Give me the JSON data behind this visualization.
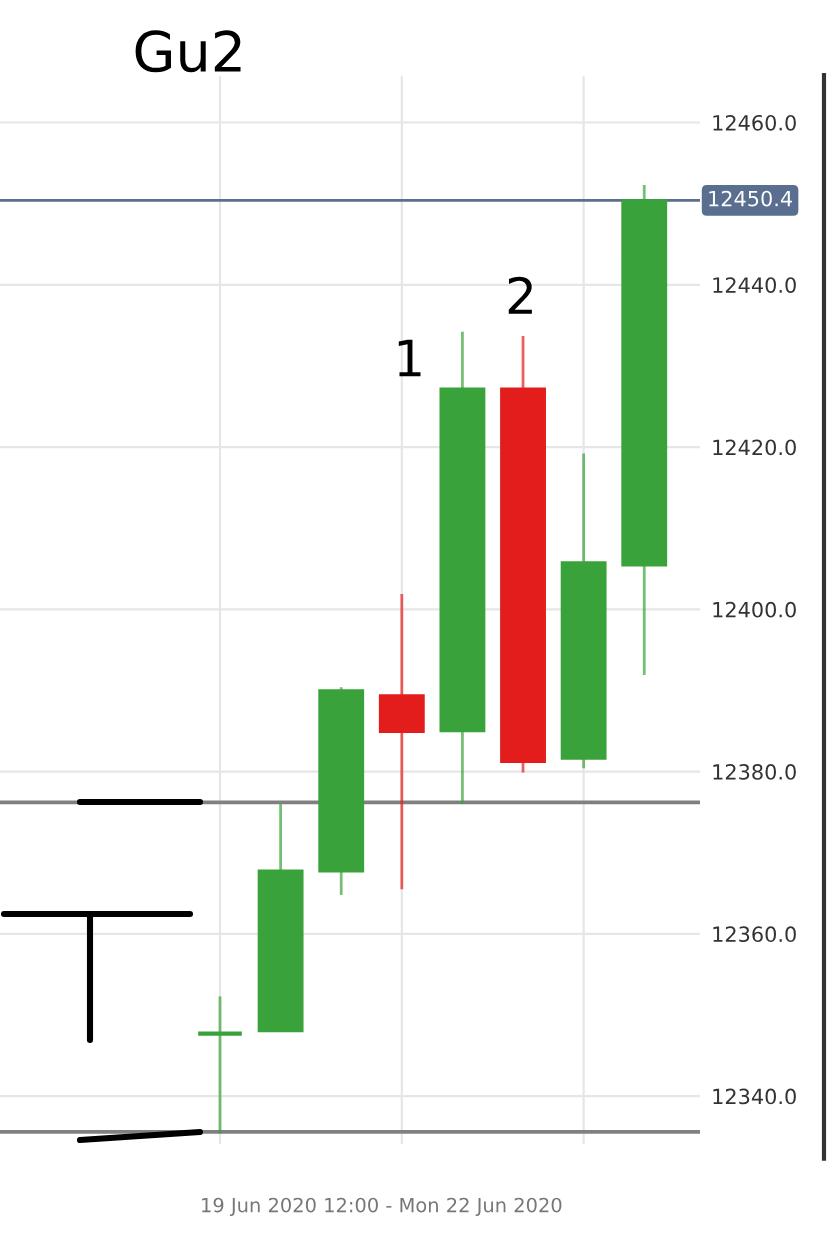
{
  "chart_data": {
    "type": "candlestick",
    "categories": [
      null,
      null,
      null,
      null,
      null,
      null,
      null,
      null
    ],
    "ohlc": [
      [
        12347.7,
        12352.3,
        12335.4,
        12347.7
      ],
      [
        12348,
        12376,
        12348,
        12367.8
      ],
      [
        12367.7,
        12390.4,
        12364.8,
        12390
      ],
      [
        12389.4,
        12401.9,
        12365.5,
        12384.9
      ],
      [
        12385,
        12434.2,
        12376,
        12427.2
      ],
      [
        12427.2,
        12433.7,
        12379.9,
        12381.2
      ],
      [
        12381.6,
        12419.2,
        12380.4,
        12405.8
      ],
      [
        12405.4,
        12452.3,
        12391.9,
        12450.4
      ]
    ],
    "colors": [
      "#3aa23a",
      "#3aa23a",
      "#3aa23a",
      "#e31c1c",
      "#3aa23a",
      "#e31c1c",
      "#3aa23a",
      "#3aa23a"
    ],
    "ylim": [
      12334.1,
      12465.7
    ],
    "yticks": [
      {
        "value": 12340,
        "label": "12340.0"
      },
      {
        "value": 12360,
        "label": "12360.0"
      },
      {
        "value": 12380,
        "label": "12380.0"
      },
      {
        "value": 12400,
        "label": "12400.0"
      },
      {
        "value": 12420,
        "label": "12420.0"
      },
      {
        "value": 12440,
        "label": "12440.0"
      },
      {
        "value": 12460,
        "label": "12460.0"
      }
    ],
    "xlabel": "19 Jun 2020 12:00 - Mon 22 Jun 2020",
    "grid": true,
    "ref_lines": [
      {
        "axis": "y",
        "value": 12450.4,
        "label": "12450.4",
        "color": "#5a6f8f"
      },
      {
        "axis": "y",
        "value": 12376.2,
        "color": "#808080"
      },
      {
        "axis": "y",
        "value": 12335.6,
        "color": "#808080"
      }
    ],
    "annotations": [
      "Gu2",
      "1",
      "2"
    ]
  }
}
